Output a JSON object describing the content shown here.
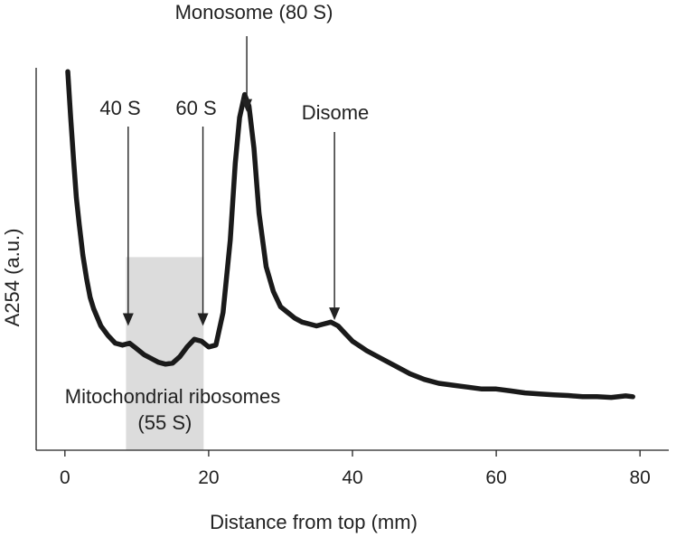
{
  "chart_data": {
    "type": "line",
    "xlabel": "Distance from top (mm)",
    "ylabel": "A254 (a.u.)",
    "xlim": [
      -4,
      84
    ],
    "ylim": [
      0,
      1
    ],
    "x_ticks": [
      0,
      20,
      40,
      60,
      80
    ],
    "grid": false,
    "shaded_region": {
      "x_range": [
        8.5,
        19.3
      ],
      "y_top": 0.505,
      "color": "#dcdcdc",
      "label_lines": [
        "Mitochondrial ribosomes",
        "(55 S)"
      ]
    },
    "annotations": [
      {
        "text": "40 S",
        "x": 8.8,
        "y": 0.325
      },
      {
        "text": "60 S",
        "x": 19.2,
        "y": 0.325
      },
      {
        "text": "Monosome (80 S)",
        "x": 25.3,
        "y": 0.885
      },
      {
        "text": "Disome",
        "x": 37.5,
        "y": 0.34
      }
    ],
    "series": [
      {
        "x": [
          0.4,
          0.8,
          1.2,
          1.6,
          2.0,
          2.5,
          3.0,
          3.5,
          4.0,
          5.0,
          6.0,
          7.0,
          8.0,
          9.0,
          10.0,
          11.0,
          12.0,
          13.0,
          14.0,
          15.0,
          16.0,
          17.0,
          18.0,
          19.0,
          20.0,
          21.0,
          22.0,
          23.0,
          23.7,
          24.3,
          25.0,
          25.6,
          26.3,
          27.0,
          28.0,
          29.0,
          30.0,
          31.0,
          32.0,
          33.0,
          34.0,
          35.0,
          36.0,
          37.0,
          38.0,
          39.0,
          40.0,
          42.0,
          44.0,
          46.0,
          48.0,
          50.0,
          52.0,
          54.0,
          56.0,
          58.0,
          60.0,
          62.0,
          64.0,
          66.0,
          68.0,
          70.0,
          72.0,
          74.0,
          76.0,
          78.0,
          79.0
        ],
        "y": [
          0.99,
          0.87,
          0.76,
          0.66,
          0.59,
          0.51,
          0.45,
          0.4,
          0.37,
          0.325,
          0.3,
          0.28,
          0.275,
          0.28,
          0.265,
          0.25,
          0.24,
          0.23,
          0.225,
          0.228,
          0.245,
          0.27,
          0.29,
          0.285,
          0.27,
          0.275,
          0.36,
          0.55,
          0.75,
          0.87,
          0.93,
          0.9,
          0.79,
          0.62,
          0.48,
          0.415,
          0.375,
          0.36,
          0.345,
          0.335,
          0.33,
          0.325,
          0.33,
          0.335,
          0.325,
          0.305,
          0.285,
          0.26,
          0.24,
          0.22,
          0.2,
          0.185,
          0.175,
          0.17,
          0.165,
          0.16,
          0.16,
          0.155,
          0.15,
          0.147,
          0.145,
          0.143,
          0.14,
          0.14,
          0.138,
          0.142,
          0.14
        ]
      }
    ]
  }
}
